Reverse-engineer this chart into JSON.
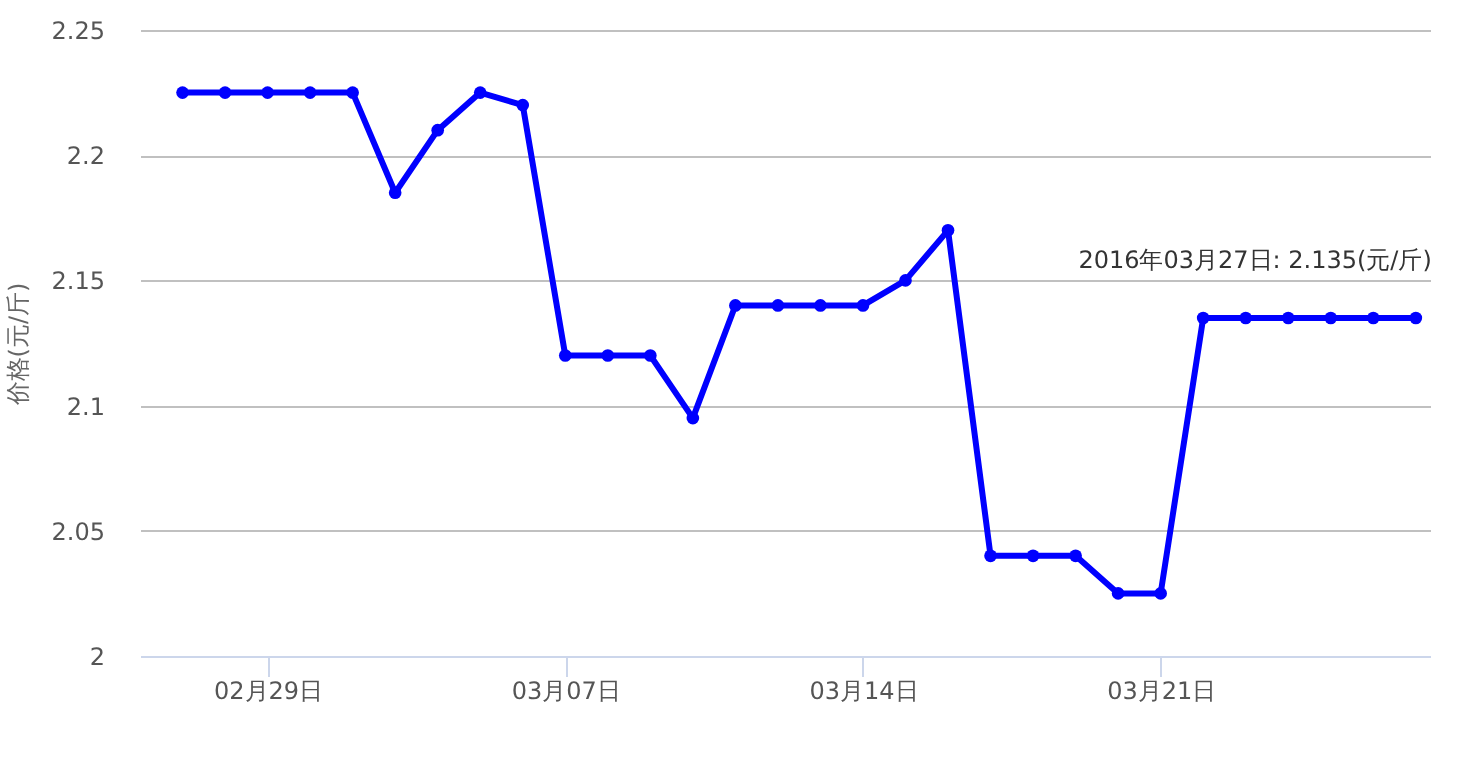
{
  "chart_data": {
    "type": "line",
    "ylabel": "价格(元/斤)",
    "x": [
      "2016-02-27",
      "2016-02-28",
      "2016-02-29",
      "2016-03-01",
      "2016-03-02",
      "2016-03-03",
      "2016-03-04",
      "2016-03-05",
      "2016-03-06",
      "2016-03-07",
      "2016-03-08",
      "2016-03-09",
      "2016-03-10",
      "2016-03-11",
      "2016-03-12",
      "2016-03-13",
      "2016-03-14",
      "2016-03-15",
      "2016-03-16",
      "2016-03-17",
      "2016-03-18",
      "2016-03-19",
      "2016-03-20",
      "2016-03-21",
      "2016-03-22",
      "2016-03-23",
      "2016-03-24",
      "2016-03-25",
      "2016-03-26",
      "2016-03-27"
    ],
    "series": [
      {
        "color": "#0000ff",
        "values": [
          2.225,
          2.225,
          2.225,
          2.225,
          2.225,
          2.185,
          2.21,
          2.225,
          2.22,
          2.12,
          2.12,
          2.12,
          2.095,
          2.14,
          2.14,
          2.14,
          2.14,
          2.15,
          2.17,
          2.04,
          2.04,
          2.04,
          2.025,
          2.025,
          2.135,
          2.135,
          2.135,
          2.135,
          2.135,
          2.135
        ]
      }
    ],
    "xlim": [
      "2016-02-26",
      "2016-03-27T08:00"
    ],
    "xticks": [
      {
        "value": "2016-02-29",
        "label": "02月29日"
      },
      {
        "value": "2016-03-07",
        "label": "03月07日"
      },
      {
        "value": "2016-03-14",
        "label": "03月14日"
      },
      {
        "value": "2016-03-21",
        "label": "03月21日"
      }
    ],
    "ylim": [
      2,
      2.25
    ],
    "yticks": [
      2,
      2.05,
      2.1,
      2.15,
      2.2,
      2.25
    ],
    "grid": "y",
    "marker": "circle",
    "line_style": "solid",
    "annotations": [
      {
        "text": "2016年03月27日: 2.135(元/斤)",
        "x": "2016-03-27",
        "y": 2.135
      }
    ]
  }
}
